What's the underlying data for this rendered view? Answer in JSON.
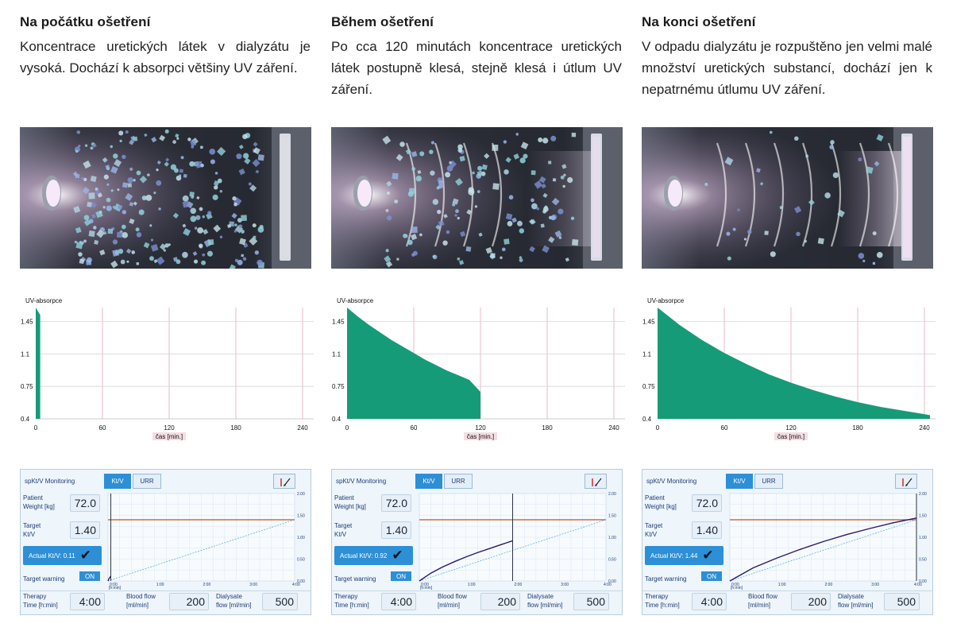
{
  "columns": [
    {
      "heading": "Na počátku ošetření",
      "desc": "Koncentrace uretických látek v dialyzátu je vysoká. Dochází k absorpci většiny UV záření.",
      "illus": {
        "particle_level": 1.0,
        "waves": 0
      },
      "chart_data": {
        "type": "area",
        "ylabel": "UV-absorpce",
        "xlabel": "čas [min.]",
        "x_ticks": [
          0,
          60,
          120,
          180,
          240
        ],
        "y_ticks": [
          0.4,
          0.75,
          1.1,
          1.45
        ],
        "xlim": [
          0,
          250
        ],
        "ylim": [
          0.4,
          1.6
        ],
        "series": [
          {
            "x": [
              0,
              0.5,
              1,
              1.5,
              2,
              2.5,
              3,
              3.5,
              4
            ],
            "y": [
              1.6,
              1.59,
              1.58,
              1.57,
              1.56,
              1.55,
              1.54,
              1.53,
              1.52
            ]
          }
        ]
      },
      "monitor": {
        "title": "spKt/V Monitoring",
        "tab_ktv": "Kt/V",
        "tab_urr": "URR",
        "weight_label_1": "Patient",
        "weight_label_2": "Weight [kg]",
        "weight": "72.0",
        "target_label_1": "Target",
        "target_label_2": "Kt/V",
        "target": "1.40",
        "actual_label": "Actual Kt/V:",
        "actual": "0.11",
        "warning_label": "Target warning",
        "warning_state": "ON",
        "therapy_label_1": "Therapy",
        "therapy_label_2": "Time [h:min]",
        "therapy_time": "4:00",
        "blood_label_1": "Blood flow",
        "blood_label_2": "[ml/min]",
        "blood_flow": "200",
        "dialysate_label_1": "Dialysate",
        "dialysate_label_2": "flow [ml/min]",
        "dialysate_flow": "500",
        "chart_data": {
          "type": "line",
          "x_ticks": [
            "0:00",
            "1:00",
            "2:00",
            "3:00",
            "4:00"
          ],
          "x_unit": "[h:min]",
          "y_ticks": [
            "0.00",
            "0.50",
            "1.00",
            "1.50",
            "2.00"
          ],
          "xlim": [
            0,
            4
          ],
          "ylim": [
            0,
            2
          ],
          "target": 1.4,
          "cursor": 0.06,
          "actual": {
            "x": [
              0,
              0.02,
              0.04,
              0.06
            ],
            "y": [
              0,
              0.05,
              0.08,
              0.11
            ]
          }
        }
      }
    },
    {
      "heading": "Během ošetření",
      "desc": "Po cca 120 minutách koncentrace uretických látek postupně klesá, stejně klesá i útlum UV záření.",
      "illus": {
        "particle_level": 0.6,
        "waves": 4
      },
      "chart_data": {
        "type": "area",
        "ylabel": "UV-absorpce",
        "xlabel": "čas [min.]",
        "x_ticks": [
          0,
          60,
          120,
          180,
          240
        ],
        "y_ticks": [
          0.4,
          0.75,
          1.1,
          1.45
        ],
        "xlim": [
          0,
          250
        ],
        "ylim": [
          0.4,
          1.6
        ],
        "series": [
          {
            "x": [
              0,
              10,
              20,
              30,
              40,
              50,
              60,
              70,
              80,
              90,
              100,
              110,
              120
            ],
            "y": [
              1.6,
              1.5,
              1.41,
              1.33,
              1.25,
              1.18,
              1.11,
              1.04,
              0.98,
              0.92,
              0.87,
              0.82,
              0.69
            ]
          }
        ]
      },
      "monitor": {
        "title": "spKt/V Monitoring",
        "tab_ktv": "Kt/V",
        "tab_urr": "URR",
        "weight_label_1": "Patient",
        "weight_label_2": "Weight [kg]",
        "weight": "72.0",
        "target_label_1": "Target",
        "target_label_2": "Kt/V",
        "target": "1.40",
        "actual_label": "Actual Kt/V:",
        "actual": "0.92",
        "warning_label": "Target warning",
        "warning_state": "ON",
        "therapy_label_1": "Therapy",
        "therapy_label_2": "Time [h:min]",
        "therapy_time": "4:00",
        "blood_label_1": "Blood flow",
        "blood_label_2": "[ml/min]",
        "blood_flow": "200",
        "dialysate_label_1": "Dialysate",
        "dialysate_label_2": "flow [ml/min]",
        "dialysate_flow": "500",
        "chart_data": {
          "type": "line",
          "x_ticks": [
            "0:00",
            "1:00",
            "2:00",
            "3:00",
            "4:00"
          ],
          "x_unit": "[h:min]",
          "y_ticks": [
            "0.00",
            "0.50",
            "1.00",
            "1.50",
            "2.00"
          ],
          "xlim": [
            0,
            4
          ],
          "ylim": [
            0,
            2
          ],
          "target": 1.4,
          "cursor": 2.0,
          "actual": {
            "x": [
              0,
              0.25,
              0.5,
              0.75,
              1,
              1.25,
              1.5,
              1.75,
              2
            ],
            "y": [
              0,
              0.18,
              0.32,
              0.44,
              0.55,
              0.65,
              0.74,
              0.83,
              0.92
            ]
          }
        }
      }
    },
    {
      "heading": "Na konci ošetření",
      "desc": "V odpadu dialyzátu je rozpuštěno jen velmi malé množství uretických substancí, dochází jen k nepatrnému útlumu UV záření.",
      "illus": {
        "particle_level": 0.15,
        "waves": 7
      },
      "chart_data": {
        "type": "area",
        "ylabel": "UV-absorpce",
        "xlabel": "čas [min.]",
        "x_ticks": [
          0,
          60,
          120,
          180,
          240
        ],
        "y_ticks": [
          0.4,
          0.75,
          1.1,
          1.45
        ],
        "xlim": [
          0,
          250
        ],
        "ylim": [
          0.4,
          1.6
        ],
        "series": [
          {
            "x": [
              0,
              20,
              40,
              60,
              80,
              100,
              120,
              140,
              160,
              180,
              200,
              220,
              240,
              245
            ],
            "y": [
              1.6,
              1.41,
              1.25,
              1.11,
              0.99,
              0.88,
              0.79,
              0.71,
              0.64,
              0.58,
              0.53,
              0.49,
              0.45,
              0.44
            ]
          }
        ]
      },
      "monitor": {
        "title": "spKt/V Monitoring",
        "tab_ktv": "Kt/V",
        "tab_urr": "URR",
        "weight_label_1": "Patient",
        "weight_label_2": "Weight [kg]",
        "weight": "72.0",
        "target_label_1": "Target",
        "target_label_2": "Kt/V",
        "target": "1.40",
        "actual_label": "Actual Kt/V:",
        "actual": "1.44",
        "warning_label": "Target warning",
        "warning_state": "ON",
        "therapy_label_1": "Therapy",
        "therapy_label_2": "Time [h:min]",
        "therapy_time": "4:00",
        "blood_label_1": "Blood flow",
        "blood_label_2": "[ml/min]",
        "blood_flow": "200",
        "dialysate_label_1": "Dialysate",
        "dialysate_label_2": "flow [ml/min]",
        "dialysate_flow": "500",
        "chart_data": {
          "type": "line",
          "x_ticks": [
            "0:00",
            "1:00",
            "2:00",
            "3:00",
            "4:00"
          ],
          "x_unit": "[h:min]",
          "y_ticks": [
            "0.00",
            "0.50",
            "1.00",
            "1.50",
            "2.00"
          ],
          "xlim": [
            0,
            4
          ],
          "ylim": [
            0,
            2
          ],
          "target": 1.4,
          "cursor": 4.0,
          "actual": {
            "x": [
              0,
              0.5,
              1,
              1.5,
              2,
              2.5,
              3,
              3.5,
              4
            ],
            "y": [
              0,
              0.3,
              0.52,
              0.72,
              0.9,
              1.06,
              1.2,
              1.33,
              1.44
            ]
          }
        }
      }
    }
  ],
  "colors": {
    "area": "#169b78",
    "grid": "#f1cdd6",
    "target_line": "#c2541e",
    "actual_line": "#2a1a6a",
    "diagonal": "#5cb0e0",
    "accent": "#2d8fd6"
  },
  "icons": {
    "check": "check-icon",
    "tool": "pen-tool-icon"
  }
}
